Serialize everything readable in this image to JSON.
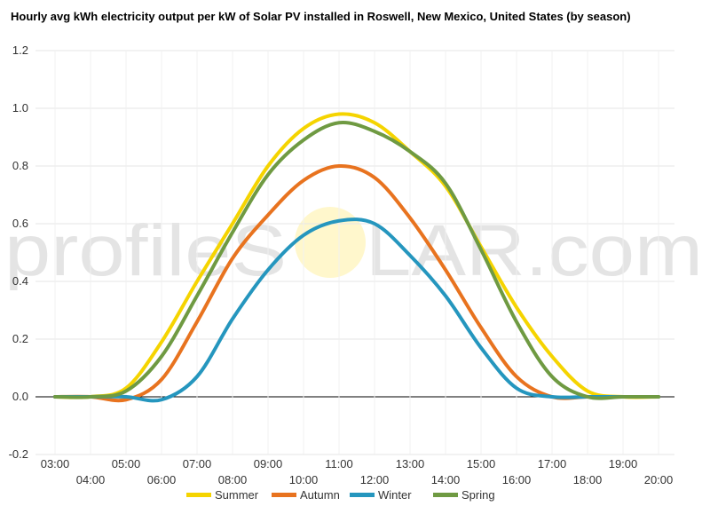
{
  "chart_data": {
    "type": "line",
    "title": "Hourly avg kWh electricity output per kW of Solar PV installed in Roswell, New Mexico, United States (by season)",
    "xlabel": "",
    "ylabel": "",
    "x": [
      "03:00",
      "04:00",
      "05:00",
      "06:00",
      "07:00",
      "08:00",
      "09:00",
      "10:00",
      "11:00",
      "12:00",
      "13:00",
      "14:00",
      "15:00",
      "16:00",
      "17:00",
      "18:00",
      "19:00",
      "20:00"
    ],
    "ylim": [
      -0.2,
      1.2
    ],
    "yticks": [
      "-0.2",
      "0.0",
      "0.2",
      "0.4",
      "0.6",
      "0.8",
      "1.0",
      "1.2"
    ],
    "grid": true,
    "legend_position": "bottom",
    "series": [
      {
        "name": "Summer",
        "color": "#f5d400",
        "values": [
          0,
          0,
          0.03,
          0.19,
          0.4,
          0.6,
          0.8,
          0.93,
          0.98,
          0.95,
          0.85,
          0.73,
          0.52,
          0.31,
          0.14,
          0.02,
          0,
          0
        ]
      },
      {
        "name": "Autumn",
        "color": "#e8731f",
        "values": [
          0,
          0,
          -0.01,
          0.06,
          0.26,
          0.48,
          0.63,
          0.75,
          0.8,
          0.76,
          0.62,
          0.44,
          0.24,
          0.07,
          0,
          0,
          0,
          0
        ]
      },
      {
        "name": "Winter",
        "color": "#2596be",
        "values": [
          0,
          0,
          0,
          -0.01,
          0.07,
          0.27,
          0.44,
          0.56,
          0.61,
          0.6,
          0.49,
          0.35,
          0.17,
          0.03,
          0,
          0,
          0,
          0
        ]
      },
      {
        "name": "Spring",
        "color": "#6f9a42",
        "values": [
          0,
          0,
          0.02,
          0.14,
          0.35,
          0.57,
          0.77,
          0.89,
          0.95,
          0.92,
          0.85,
          0.74,
          0.51,
          0.26,
          0.07,
          0,
          0,
          0
        ]
      }
    ]
  },
  "watermark": {
    "left": "profileS",
    "right": "LAR.com"
  }
}
